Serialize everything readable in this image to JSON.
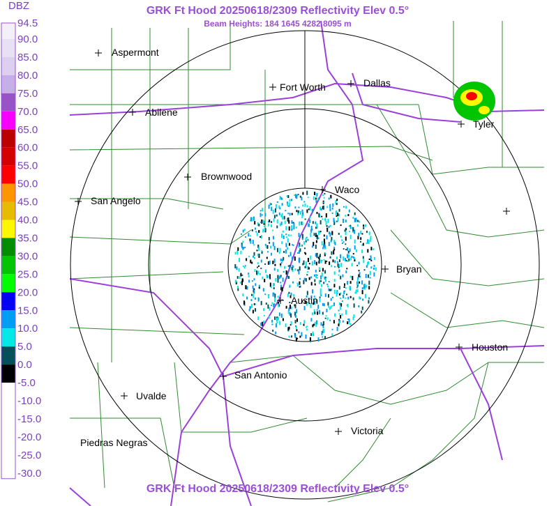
{
  "header": {
    "title": "GRK Ft Hood 20250618/2309 Reflectivity Elev 0.5°",
    "subtitle": "Beam Heights: 184 1645 4282 8095 m"
  },
  "footer": {
    "title": "GRK Ft Hood 20250618/2309 Reflectivity Elev 0.5°"
  },
  "legend": {
    "title": "DBZ",
    "labels": [
      "94.5",
      "90.0",
      "85.0",
      "80.0",
      "75.0",
      "70.0",
      "65.0",
      "60.0",
      "55.0",
      "50.0",
      "45.0",
      "40.0",
      "35.0",
      "30.0",
      "25.0",
      "20.0",
      "15.0",
      "10.0",
      "5.0",
      "0.0",
      "-5.0",
      "-10.0",
      "-15.0",
      "-20.0",
      "-25.0",
      "-30.0"
    ],
    "colors": [
      "#f4f0fa",
      "#e8e0f4",
      "#dccff0",
      "#c6aee8",
      "#9854c6",
      "#f800fd",
      "#bc0000",
      "#d40000",
      "#fd0000",
      "#fd9500",
      "#e5bc00",
      "#fdf802",
      "#008e00",
      "#01c501",
      "#02fd02",
      "#0300f4",
      "#019ff4",
      "#04e9e7",
      "#035058",
      "#000000",
      "#ffffff",
      "#ffffff",
      "#ffffff",
      "#ffffff",
      "#ffffff"
    ]
  },
  "cities": [
    "Aspermont",
    "Fort Worth",
    "Dallas",
    "Abilene",
    "Tyler",
    "Brownwood",
    "Waco",
    "San Angelo",
    "Bryan",
    "Austin",
    "Houston",
    "San Antonio",
    "Uvalde",
    "Victoria",
    "Piedras Negras"
  ]
}
